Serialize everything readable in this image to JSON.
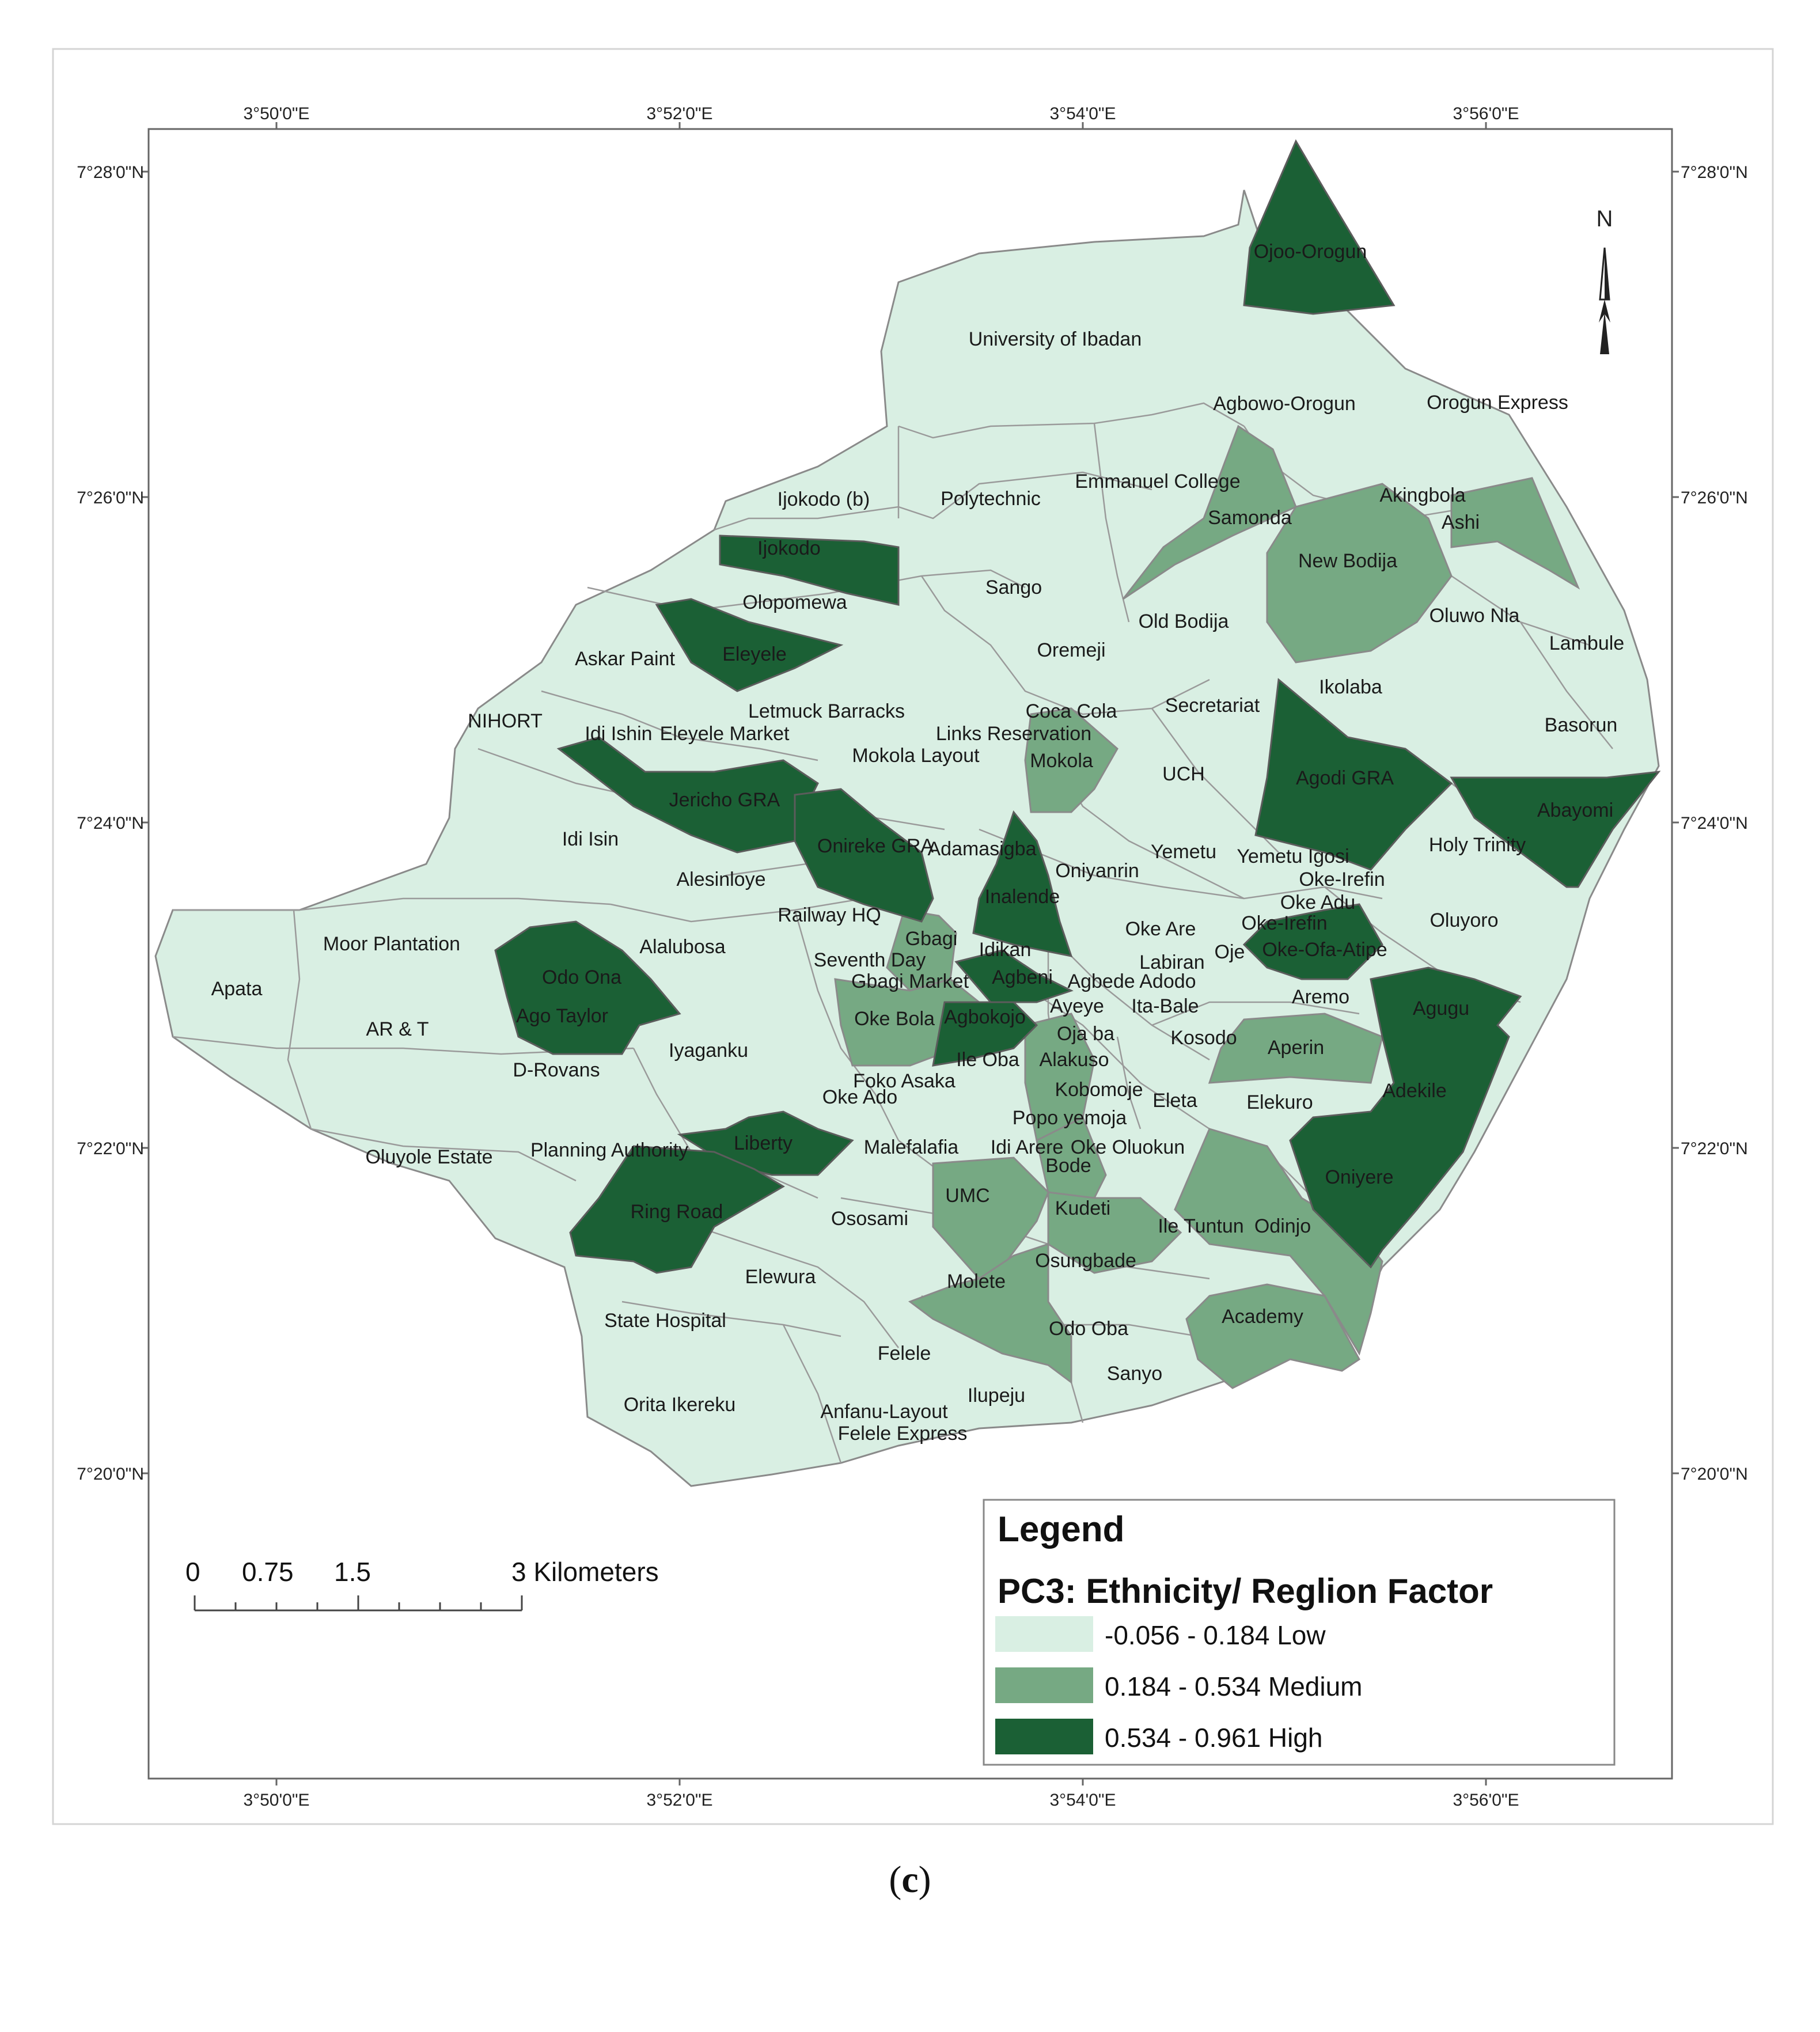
{
  "colors": {
    "low": "#d9efe3",
    "medium": "#76a983",
    "high": "#1b6035",
    "border": "#8a8a8a"
  },
  "coordinates": {
    "longitude_labels": [
      "3°50'0\"E",
      "3°52'0\"E",
      "3°54'0\"E",
      "3°56'0\"E"
    ],
    "latitude_labels": [
      "7°28'0\"N",
      "7°26'0\"N",
      "7°24'0\"N",
      "7°22'0\"N",
      "7°20'0\"N"
    ]
  },
  "north_arrow": {
    "label": "N",
    "icon": "north-arrow-icon"
  },
  "map": {
    "places": [
      {
        "name": "Ojoo-Orogun",
        "class": "high"
      },
      {
        "name": "University of Ibadan",
        "class": "low"
      },
      {
        "name": "Agbowo-Orogun",
        "class": "low"
      },
      {
        "name": "Orogun Express",
        "class": "low"
      },
      {
        "name": "Ijokodo (b)",
        "class": "low"
      },
      {
        "name": "Polytechnic",
        "class": "low"
      },
      {
        "name": "Emmanuel College",
        "class": "low"
      },
      {
        "name": "Samonda",
        "class": "medium"
      },
      {
        "name": "Akingbola",
        "class": "low"
      },
      {
        "name": "Ashi",
        "class": "medium"
      },
      {
        "name": "Ijokodo",
        "class": "high"
      },
      {
        "name": "New Bodija",
        "class": "medium"
      },
      {
        "name": "Sango",
        "class": "low"
      },
      {
        "name": "Olopomewa",
        "class": "low"
      },
      {
        "name": "Old Bodija",
        "class": "low"
      },
      {
        "name": "Oluwo Nla",
        "class": "low"
      },
      {
        "name": "Lambule",
        "class": "low"
      },
      {
        "name": "Askar Paint",
        "class": "low"
      },
      {
        "name": "Eleyele",
        "class": "high"
      },
      {
        "name": "Oremeji",
        "class": "low"
      },
      {
        "name": "Ikolaba",
        "class": "low"
      },
      {
        "name": "Letmuck Barracks",
        "class": "low"
      },
      {
        "name": "Coca Cola",
        "class": "low"
      },
      {
        "name": "Secretariat",
        "class": "low"
      },
      {
        "name": "NIHORT",
        "class": "low"
      },
      {
        "name": "Idi Ishin",
        "class": "low"
      },
      {
        "name": "Eleyele Market",
        "class": "low"
      },
      {
        "name": "Links Reservation",
        "class": "low"
      },
      {
        "name": "Basorun",
        "class": "low"
      },
      {
        "name": "Mokola Layout",
        "class": "low"
      },
      {
        "name": "Mokola",
        "class": "medium"
      },
      {
        "name": "UCH",
        "class": "low"
      },
      {
        "name": "Agodi GRA",
        "class": "high"
      },
      {
        "name": "Jericho GRA",
        "class": "high"
      },
      {
        "name": "Abayomi",
        "class": "high"
      },
      {
        "name": "Idi Isin",
        "class": "low"
      },
      {
        "name": "Onireke GRA",
        "class": "high"
      },
      {
        "name": "Adamasigba",
        "class": "low"
      },
      {
        "name": "Yemetu",
        "class": "low"
      },
      {
        "name": "Yemetu Igosi",
        "class": "low"
      },
      {
        "name": "Holy Trinity",
        "class": "low"
      },
      {
        "name": "Oniyanrin",
        "class": "low"
      },
      {
        "name": "Oke-Irefin",
        "class": "low"
      },
      {
        "name": "Alesinloye",
        "class": "low"
      },
      {
        "name": "Inalende",
        "class": "high"
      },
      {
        "name": "Oke Adu",
        "class": "low"
      },
      {
        "name": "Railway HQ",
        "class": "low"
      },
      {
        "name": "Oke Are",
        "class": "low"
      },
      {
        "name": "Oke-Irefin",
        "class": "high"
      },
      {
        "name": "Oluyoro",
        "class": "low"
      },
      {
        "name": "Moor Plantation",
        "class": "low"
      },
      {
        "name": "Gbagi",
        "class": "medium"
      },
      {
        "name": "Alalubosa",
        "class": "low"
      },
      {
        "name": "Idikan",
        "class": "low"
      },
      {
        "name": "Oje",
        "class": "low"
      },
      {
        "name": "Oke-Ofa-Atipe",
        "class": "high"
      },
      {
        "name": "Seventh Day",
        "class": "low"
      },
      {
        "name": "Labiran",
        "class": "low"
      },
      {
        "name": "Odo Ona",
        "class": "high"
      },
      {
        "name": "Gbagi Market",
        "class": "medium"
      },
      {
        "name": "Agbeni",
        "class": "high"
      },
      {
        "name": "Agbede Adodo",
        "class": "low"
      },
      {
        "name": "Apata",
        "class": "low"
      },
      {
        "name": "Aremo",
        "class": "low"
      },
      {
        "name": "Agugu",
        "class": "high"
      },
      {
        "name": "Ayeye",
        "class": "low"
      },
      {
        "name": "Ita-Bale",
        "class": "low"
      },
      {
        "name": "Ago Taylor",
        "class": "high"
      },
      {
        "name": "Oke Bola",
        "class": "medium"
      },
      {
        "name": "Agbokojo",
        "class": "high"
      },
      {
        "name": "AR & T",
        "class": "low"
      },
      {
        "name": "Oja ba",
        "class": "low"
      },
      {
        "name": "Kosodo",
        "class": "low"
      },
      {
        "name": "Iyaganku",
        "class": "low"
      },
      {
        "name": "Aperin",
        "class": "medium"
      },
      {
        "name": "Ile Oba",
        "class": "low"
      },
      {
        "name": "Alakuso",
        "class": "low"
      },
      {
        "name": "D-Rovans",
        "class": "low"
      },
      {
        "name": "Foko Asaka",
        "class": "low"
      },
      {
        "name": "Adekile",
        "class": "high"
      },
      {
        "name": "Kobomoje",
        "class": "medium"
      },
      {
        "name": "Oke Ado",
        "class": "low"
      },
      {
        "name": "Eleta",
        "class": "low"
      },
      {
        "name": "Elekuro",
        "class": "low"
      },
      {
        "name": "Popo yemoja",
        "class": "low"
      },
      {
        "name": "Liberty",
        "class": "high"
      },
      {
        "name": "Planning Authority",
        "class": "low"
      },
      {
        "name": "Malefalafia",
        "class": "low"
      },
      {
        "name": "Idi Arere",
        "class": "low"
      },
      {
        "name": "Oke Oluokun",
        "class": "low"
      },
      {
        "name": "Oluyole Estate",
        "class": "low"
      },
      {
        "name": "Bode",
        "class": "medium"
      },
      {
        "name": "Oniyere",
        "class": "high"
      },
      {
        "name": "UMC",
        "class": "medium"
      },
      {
        "name": "Kudeti",
        "class": "medium"
      },
      {
        "name": "Ring Road",
        "class": "high"
      },
      {
        "name": "Ososami",
        "class": "low"
      },
      {
        "name": "Ile Tuntun",
        "class": "low"
      },
      {
        "name": "Odinjo",
        "class": "medium"
      },
      {
        "name": "Osungbade",
        "class": "low"
      },
      {
        "name": "Elewura",
        "class": "low"
      },
      {
        "name": "Molete",
        "class": "medium"
      },
      {
        "name": "Academy",
        "class": "medium"
      },
      {
        "name": "State Hospital",
        "class": "low"
      },
      {
        "name": "Odo Oba",
        "class": "low"
      },
      {
        "name": "Felele",
        "class": "low"
      },
      {
        "name": "Sanyo",
        "class": "low"
      },
      {
        "name": "Ilupeju",
        "class": "low"
      },
      {
        "name": "Orita Ikereku",
        "class": "low"
      },
      {
        "name": "Anfanu-Layout",
        "class": "low"
      },
      {
        "name": "Felele Express",
        "class": "low"
      }
    ]
  },
  "legend": {
    "title": "Legend",
    "subtitle": "PC3: Ethnicity/ Reglion Factor",
    "items": [
      {
        "label": "-0.056 - 0.184 Low",
        "class": "low"
      },
      {
        "label": "0.184 - 0.534 Medium",
        "class": "medium"
      },
      {
        "label": "0.534 - 0.961 High",
        "class": "high"
      }
    ]
  },
  "scale_bar": {
    "labels": [
      "0",
      "0.75",
      "1.5",
      "3 Kilometers"
    ]
  },
  "caption": {
    "open": "(",
    "letter": "c",
    "close": ")"
  }
}
